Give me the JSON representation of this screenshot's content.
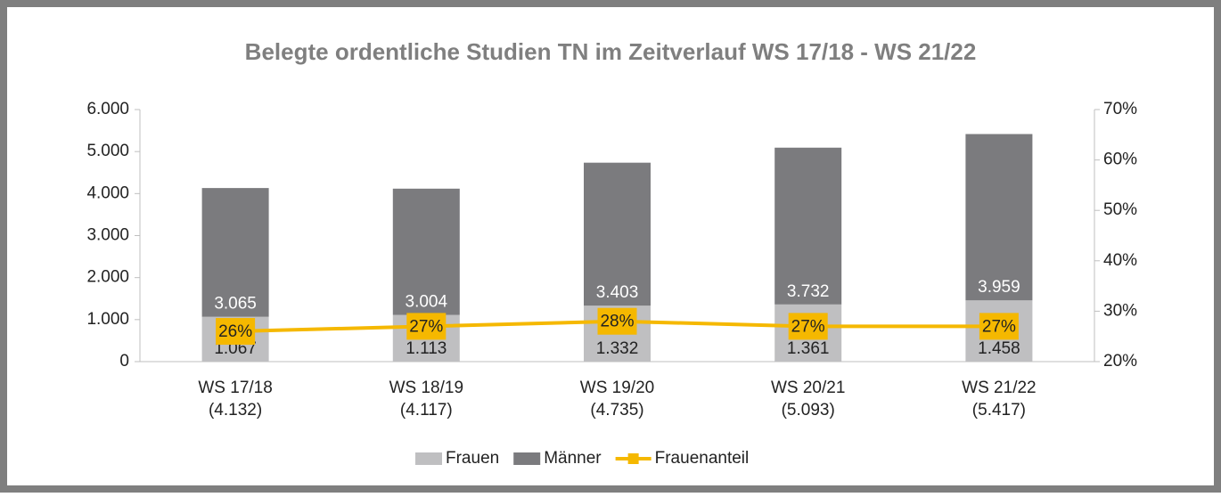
{
  "chart_data": {
    "type": "bar",
    "title": "Belegte ordentliche Studien TN im Zeitverlauf WS 17/18 - WS 21/22",
    "categories": [
      "WS 17/18",
      "WS 18/19",
      "WS 19/20",
      "WS 20/21",
      "WS 21/22"
    ],
    "totals": {
      "values": [
        4132,
        4117,
        4735,
        5093,
        5417
      ],
      "value_labels": [
        "(4.132)",
        "(4.117)",
        "(4.735)",
        "(5.093)",
        "(5.417)"
      ]
    },
    "series": [
      {
        "name": "Frauen",
        "color": "#bfbfc1",
        "values": [
          1067,
          1113,
          1332,
          1361,
          1458
        ],
        "value_labels": [
          "1.067",
          "1.113",
          "1.332",
          "1.361",
          "1.458"
        ]
      },
      {
        "name": "Männer",
        "color": "#7b7b7e",
        "values": [
          3065,
          3004,
          3403,
          3732,
          3959
        ],
        "value_labels": [
          "3.065",
          "3.004",
          "3.403",
          "3.732",
          "3.959"
        ]
      },
      {
        "name": "Frauenanteil",
        "color": "#f5b800",
        "axis": "y2",
        "values": [
          26,
          27,
          28,
          27,
          27
        ],
        "value_labels": [
          "26%",
          "27%",
          "28%",
          "27%",
          "27%"
        ]
      }
    ],
    "ylim": [
      0,
      6000
    ],
    "yticks": [
      0,
      {
        "value": 1000,
        "label": "1.000"
      },
      {
        "value": 2000,
        "label": "2.000"
      },
      {
        "value": 3000,
        "label": "3.000"
      },
      {
        "value": 4000,
        "label": "4.000"
      },
      {
        "value": 5000,
        "label": "5.000"
      },
      {
        "value": 6000,
        "label": "6.000"
      }
    ],
    "y2lim": [
      20,
      70
    ],
    "y2ticks": [
      {
        "value": 20,
        "label": "20%"
      },
      {
        "value": 30,
        "label": "30%"
      },
      {
        "value": 40,
        "label": "40%"
      },
      {
        "value": 50,
        "label": "50%"
      },
      {
        "value": 60,
        "label": "60%"
      },
      {
        "value": 70,
        "label": "70%"
      }
    ],
    "grid": false
  }
}
